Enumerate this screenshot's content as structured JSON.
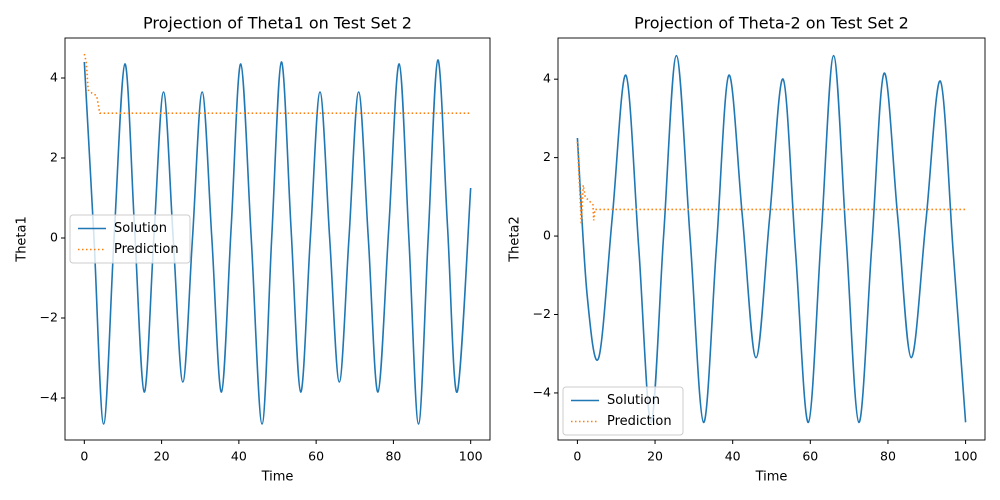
{
  "chart_data": [
    {
      "type": "line",
      "title": "Projection of Theta1 on Test Set 2",
      "x_label": "Time",
      "y_label": "Theta1",
      "xlim": [
        -5,
        105
      ],
      "ylim": [
        -5.05,
        5.0
      ],
      "xticks": [
        0,
        20,
        40,
        60,
        80,
        100
      ],
      "yticks": [
        {
          "value": -4,
          "label": "−4"
        },
        {
          "value": -2,
          "label": "−2"
        },
        0,
        2,
        4
      ],
      "legend": "center left",
      "series": [
        {
          "name": "Solution",
          "color": "#1f77b4",
          "linestyle": "solid",
          "x": [
            0,
            2.5,
            5,
            7.7,
            10.5,
            13,
            15.5,
            18,
            20.5,
            23,
            25.5,
            28,
            30.5,
            33,
            35.5,
            38,
            40.5,
            43.2,
            46,
            48.5,
            51,
            53.5,
            56,
            58.5,
            61,
            63.5,
            66,
            68.5,
            71,
            73.5,
            76,
            78.8,
            81.5,
            84,
            86.5,
            89,
            91.5,
            94,
            96.5,
            100
          ],
          "values": [
            4.4,
            0,
            -4.65,
            0,
            4.35,
            0.25,
            -3.85,
            0,
            3.65,
            0,
            -3.6,
            0,
            3.65,
            0,
            -3.85,
            0.25,
            4.35,
            0,
            -4.65,
            0,
            4.4,
            0.25,
            -3.85,
            0,
            3.65,
            0,
            -3.6,
            0,
            3.65,
            0,
            -3.85,
            0.25,
            4.35,
            0,
            -4.65,
            0,
            4.45,
            0.3,
            -3.85,
            1.25
          ]
        },
        {
          "name": "Prediction",
          "color": "#ff7f0e",
          "linestyle": "dotted",
          "x": [
            0,
            0.5,
            1,
            2,
            3,
            3.3,
            4,
            100
          ],
          "values": [
            4.6,
            4.4,
            3.7,
            3.62,
            3.57,
            3.5,
            3.12,
            3.12
          ]
        }
      ]
    },
    {
      "type": "line",
      "title": "Projection of Theta-2 on Test Set 2",
      "x_label": "Time",
      "y_label": "Theta2",
      "xlim": [
        -5,
        105
      ],
      "ylim": [
        -5.2,
        5.05
      ],
      "xticks": [
        0,
        20,
        40,
        60,
        80,
        100
      ],
      "yticks": [
        {
          "value": -4,
          "label": "−4"
        },
        {
          "value": -2,
          "label": "−2"
        },
        0,
        2,
        4
      ],
      "legend": "lower left",
      "series": [
        {
          "name": "Solution",
          "color": "#1f77b4",
          "linestyle": "solid",
          "x": [
            0,
            2.5,
            5.5,
            9,
            12.5,
            15.8,
            19,
            22.2,
            25.5,
            29,
            32.5,
            35.8,
            39,
            42.5,
            46,
            49.5,
            53,
            56.2,
            59.5,
            62.8,
            66,
            69.2,
            72.5,
            75.8,
            79,
            82.5,
            86,
            89.8,
            93.5,
            96.8,
            100
          ],
          "values": [
            2.5,
            -1.5,
            -3.1,
            0.5,
            4.1,
            -0.3,
            -4.75,
            0,
            4.6,
            0,
            -4.75,
            -0.3,
            4.1,
            0.5,
            -3.1,
            0.45,
            4.0,
            -0.4,
            -4.75,
            0,
            4.6,
            0,
            -4.75,
            -0.3,
            4.15,
            0.5,
            -3.1,
            0.4,
            3.95,
            -0.4,
            -4.75
          ]
        },
        {
          "name": "Prediction",
          "color": "#ff7f0e",
          "linestyle": "dotted",
          "x": [
            0,
            1,
            1.5,
            2,
            3,
            4,
            4.2,
            4.5,
            100
          ],
          "values": [
            2.4,
            0.3,
            1.3,
            1.0,
            0.9,
            0.8,
            0.4,
            0.68,
            0.68
          ]
        }
      ]
    }
  ]
}
